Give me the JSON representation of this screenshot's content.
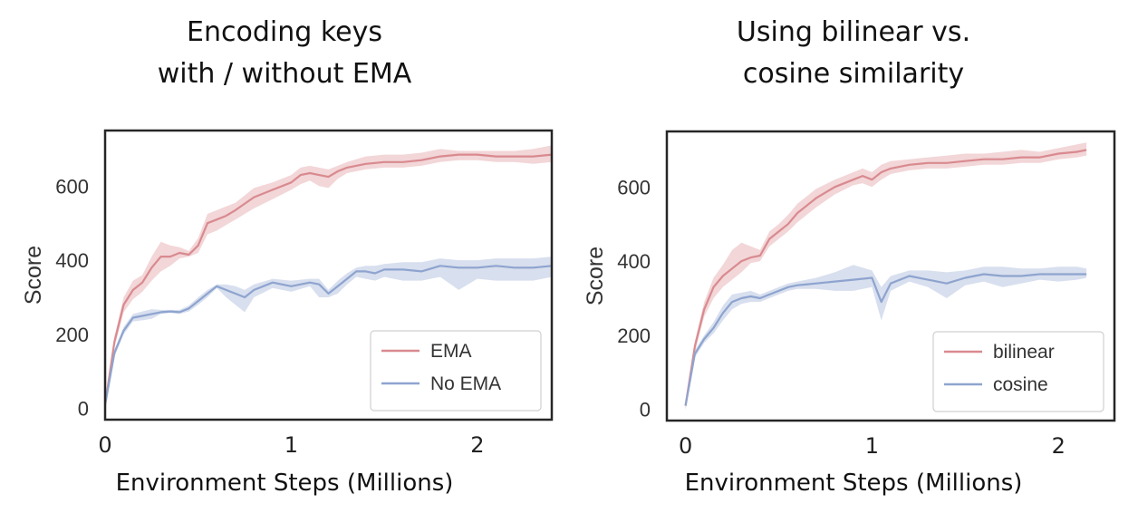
{
  "chart_data": [
    {
      "type": "line",
      "title_lines": [
        "Encoding keys",
        "with / without EMA"
      ],
      "xlabel": "Environment Steps (Millions)",
      "ylabel": "Score",
      "xlim": [
        0,
        2.4
      ],
      "ylim": [
        -30,
        750
      ],
      "xticks": [
        0,
        1,
        2
      ],
      "yticks": [
        0,
        200,
        400,
        600
      ],
      "legend_position": "lower right",
      "grid": false,
      "series": [
        {
          "name": "EMA",
          "color": "#d98a8f",
          "x": [
            0,
            0.05,
            0.1,
            0.15,
            0.2,
            0.25,
            0.3,
            0.35,
            0.4,
            0.45,
            0.5,
            0.55,
            0.6,
            0.65,
            0.7,
            0.8,
            0.9,
            1.0,
            1.05,
            1.1,
            1.15,
            1.2,
            1.25,
            1.3,
            1.4,
            1.5,
            1.6,
            1.7,
            1.8,
            1.9,
            2.0,
            2.1,
            2.2,
            2.3,
            2.4
          ],
          "y": [
            10,
            180,
            280,
            320,
            340,
            380,
            410,
            410,
            420,
            415,
            440,
            500,
            510,
            520,
            535,
            570,
            590,
            610,
            630,
            635,
            630,
            625,
            640,
            650,
            660,
            665,
            665,
            670,
            680,
            685,
            685,
            680,
            680,
            680,
            685
          ],
          "lower": [
            0,
            165,
            260,
            295,
            315,
            345,
            370,
            385,
            405,
            410,
            420,
            470,
            480,
            495,
            510,
            540,
            565,
            590,
            605,
            615,
            600,
            595,
            620,
            635,
            645,
            650,
            650,
            655,
            665,
            670,
            670,
            665,
            665,
            660,
            665
          ],
          "upper": [
            20,
            195,
            300,
            345,
            360,
            410,
            450,
            440,
            435,
            425,
            460,
            525,
            535,
            545,
            555,
            595,
            610,
            630,
            650,
            655,
            650,
            645,
            655,
            665,
            680,
            685,
            685,
            690,
            700,
            695,
            695,
            695,
            695,
            700,
            710
          ]
        },
        {
          "name": "No EMA",
          "color": "#8ea4cf",
          "x": [
            0,
            0.05,
            0.1,
            0.15,
            0.2,
            0.25,
            0.3,
            0.35,
            0.4,
            0.45,
            0.5,
            0.55,
            0.6,
            0.65,
            0.7,
            0.75,
            0.8,
            0.9,
            1.0,
            1.1,
            1.15,
            1.2,
            1.25,
            1.3,
            1.35,
            1.4,
            1.45,
            1.5,
            1.6,
            1.7,
            1.8,
            1.9,
            2.0,
            2.1,
            2.2,
            2.3,
            2.4
          ],
          "y": [
            10,
            150,
            210,
            245,
            250,
            255,
            260,
            262,
            260,
            270,
            290,
            310,
            330,
            320,
            310,
            300,
            320,
            340,
            330,
            340,
            335,
            310,
            330,
            350,
            370,
            370,
            365,
            375,
            375,
            370,
            385,
            380,
            380,
            385,
            380,
            380,
            385
          ],
          "lower": [
            0,
            140,
            200,
            235,
            238,
            242,
            255,
            258,
            255,
            262,
            280,
            300,
            325,
            300,
            280,
            260,
            300,
            325,
            315,
            330,
            300,
            300,
            310,
            335,
            355,
            350,
            345,
            355,
            345,
            345,
            355,
            320,
            350,
            345,
            345,
            345,
            355
          ],
          "upper": [
            20,
            160,
            220,
            255,
            262,
            268,
            266,
            266,
            266,
            278,
            300,
            320,
            335,
            335,
            330,
            320,
            335,
            350,
            345,
            350,
            350,
            320,
            345,
            365,
            380,
            385,
            385,
            390,
            395,
            395,
            405,
            400,
            400,
            405,
            405,
            405,
            410
          ]
        }
      ]
    },
    {
      "type": "line",
      "title_lines": [
        "Using bilinear vs.",
        "cosine similarity"
      ],
      "xlabel": "Environment Steps (Millions)",
      "ylabel": "Score",
      "xlim": [
        -0.1,
        2.3
      ],
      "ylim": [
        -30,
        750
      ],
      "xticks": [
        0,
        1,
        2
      ],
      "yticks": [
        0,
        200,
        400,
        600
      ],
      "legend_position": "lower right",
      "grid": false,
      "series": [
        {
          "name": "bilinear",
          "color": "#d98a8f",
          "x": [
            0,
            0.05,
            0.1,
            0.15,
            0.2,
            0.25,
            0.3,
            0.35,
            0.4,
            0.45,
            0.5,
            0.55,
            0.6,
            0.65,
            0.7,
            0.8,
            0.9,
            0.95,
            1.0,
            1.05,
            1.1,
            1.2,
            1.3,
            1.4,
            1.5,
            1.6,
            1.7,
            1.8,
            1.9,
            2.0,
            2.1,
            2.15
          ],
          "y": [
            10,
            170,
            270,
            330,
            360,
            380,
            400,
            410,
            415,
            460,
            480,
            500,
            530,
            550,
            570,
            600,
            620,
            630,
            620,
            640,
            650,
            660,
            665,
            665,
            670,
            675,
            675,
            680,
            680,
            690,
            695,
            700
          ],
          "lower": [
            0,
            155,
            250,
            300,
            330,
            350,
            370,
            395,
            400,
            440,
            460,
            480,
            505,
            525,
            545,
            580,
            605,
            610,
            600,
            620,
            635,
            645,
            650,
            650,
            655,
            660,
            660,
            665,
            665,
            675,
            680,
            685
          ],
          "upper": [
            20,
            185,
            290,
            355,
            390,
            430,
            450,
            440,
            430,
            480,
            500,
            525,
            555,
            575,
            595,
            620,
            640,
            650,
            640,
            660,
            670,
            675,
            680,
            685,
            690,
            690,
            695,
            700,
            695,
            705,
            715,
            720
          ]
        },
        {
          "name": "cosine",
          "color": "#8ea4cf",
          "x": [
            0,
            0.05,
            0.1,
            0.15,
            0.2,
            0.25,
            0.3,
            0.35,
            0.4,
            0.45,
            0.5,
            0.55,
            0.6,
            0.7,
            0.8,
            0.9,
            1.0,
            1.05,
            1.1,
            1.2,
            1.3,
            1.4,
            1.5,
            1.6,
            1.7,
            1.8,
            1.9,
            2.0,
            2.1,
            2.15
          ],
          "y": [
            10,
            150,
            190,
            220,
            260,
            290,
            300,
            305,
            300,
            310,
            320,
            330,
            335,
            340,
            345,
            350,
            355,
            290,
            340,
            360,
            350,
            340,
            355,
            365,
            360,
            360,
            365,
            365,
            365,
            365
          ],
          "lower": [
            0,
            140,
            180,
            205,
            240,
            270,
            285,
            290,
            290,
            300,
            310,
            320,
            325,
            325,
            320,
            320,
            330,
            240,
            320,
            345,
            330,
            300,
            335,
            345,
            330,
            340,
            350,
            345,
            350,
            355
          ],
          "upper": [
            20,
            160,
            200,
            235,
            280,
            310,
            315,
            320,
            310,
            320,
            330,
            340,
            345,
            355,
            370,
            390,
            375,
            330,
            360,
            375,
            375,
            370,
            375,
            385,
            385,
            380,
            380,
            385,
            385,
            380
          ]
        }
      ]
    }
  ]
}
